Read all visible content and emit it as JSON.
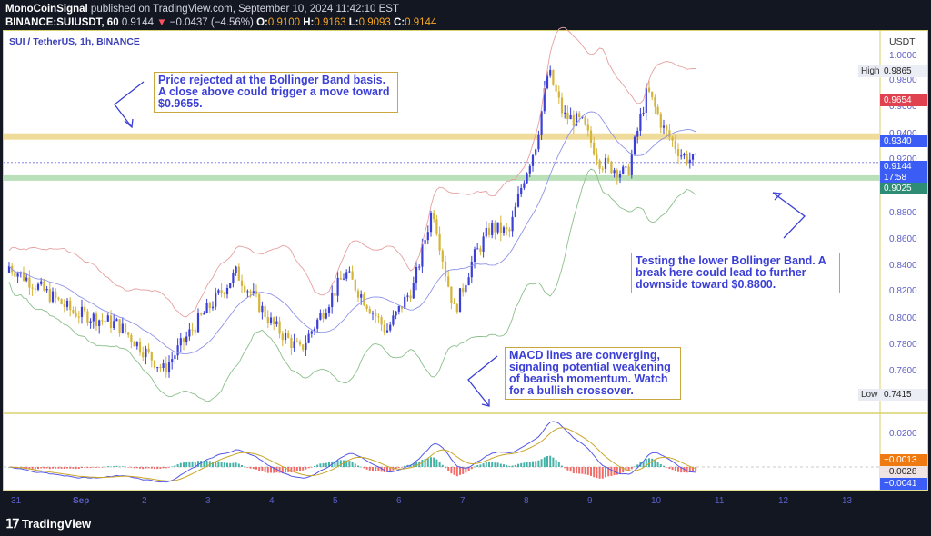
{
  "header": {
    "publisher": "MonoCoinSignal",
    "published_text": "published on TradingView.com, September 10, 2024 11:42:10 EST",
    "symbol_line": "BINANCE:SUIUSDT, 60",
    "last": "0.9144",
    "change": "−0.0437 (−4.56%)",
    "o_label": "O:",
    "o": "0.9100",
    "h_label": "H:",
    "h": "0.9163",
    "l_label": "L:",
    "l": "0.9093",
    "c_label": "C:",
    "c": "0.9144"
  },
  "symbol_title": "SUI / TetherUS, 1h, BINANCE",
  "price_axis": {
    "currency": "USDT",
    "ticks": [
      "1.0000",
      "0.9800",
      "0.9600",
      "0.9400",
      "0.9200",
      "0.8800",
      "0.8600",
      "0.8400",
      "0.8200",
      "0.8000",
      "0.7800",
      "0.7600"
    ],
    "high_label": "High",
    "high_value": "0.9865",
    "low_label": "Low",
    "low_value": "0.7415",
    "badges": {
      "red": "0.9654",
      "blue_level": "0.9340",
      "current": "0.9144",
      "countdown": "17:58",
      "green_level": "0.9025"
    }
  },
  "macd_axis": {
    "tick": "0.0200",
    "signal": "−0.0013",
    "histogram": "−0.0028",
    "macd": "−0.0041"
  },
  "time_axis": [
    "31",
    "Sep",
    "2",
    "3",
    "4",
    "5",
    "6",
    "7",
    "8",
    "9",
    "10",
    "11",
    "12",
    "13"
  ],
  "annotations": {
    "top_left": "Price rejected at the Bollinger Band basis. A close above could trigger a move toward $0.9655.",
    "right": "Testing the lower Bollinger Band. A break here could lead to further downside toward $0.8800.",
    "macd": "MACD lines are converging, signaling potential weakening of bearish momentum. Watch for a bullish crossover."
  },
  "footer": {
    "brand": "TradingView"
  },
  "colors": {
    "up": "#3b3fd6",
    "down": "#d4b43a",
    "resistance": "#f0dc9a",
    "support": "#b9e0b9",
    "bb_upper": "#e6a0a0",
    "bb_basis": "#8f93e6",
    "bb_lower": "#8cbf8c"
  },
  "chart_data": {
    "type": "candlestick",
    "title": "SUI / TetherUS, 1h, BINANCE",
    "xlabel": "",
    "ylabel": "USDT",
    "ylim": [
      0.735,
      1.005
    ],
    "x_ticks": [
      "31",
      "Sep",
      "2",
      "3",
      "4",
      "5",
      "6",
      "7",
      "8",
      "9",
      "10",
      "11",
      "12",
      "13"
    ],
    "key_points": [
      {
        "x": "31",
        "close": 0.835
      },
      {
        "x": "Sep",
        "close": 0.8
      },
      {
        "x": "2",
        "close": 0.77,
        "note": "low 0.7415"
      },
      {
        "x": "3",
        "close": 0.82
      },
      {
        "x": "4",
        "close": 0.805
      },
      {
        "x": "5",
        "close": 0.815
      },
      {
        "x": "6",
        "close": 0.83
      },
      {
        "x": "6.8",
        "close": 0.88
      },
      {
        "x": "7",
        "close": 0.83
      },
      {
        "x": "8",
        "close": 0.9
      },
      {
        "x": "8.3",
        "close": 0.985,
        "note": "high 0.9865"
      },
      {
        "x": "9",
        "close": 0.93
      },
      {
        "x": "9.7",
        "close": 0.905
      },
      {
        "x": "10",
        "close": 0.96
      },
      {
        "x": "10.7",
        "close": 0.9144
      }
    ],
    "horizontal_levels": [
      {
        "value": 0.934,
        "label": "resistance",
        "color": "#f0dc9a"
      },
      {
        "value": 0.9025,
        "label": "support",
        "color": "#b9e0b9"
      }
    ],
    "indicators": [
      "Bollinger Bands (upper, basis, lower)",
      "MACD (macd, signal, histogram)"
    ],
    "macd_last": {
      "macd": -0.0041,
      "signal": -0.0013,
      "histogram": -0.0028
    }
  }
}
